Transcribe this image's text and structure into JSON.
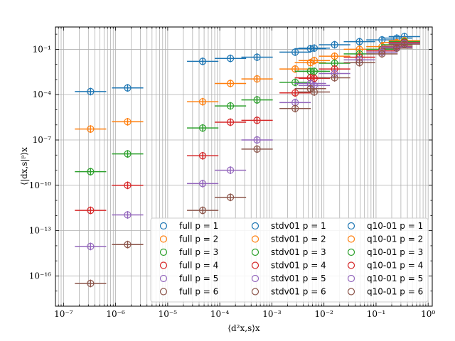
{
  "chart_data": {
    "type": "scatter",
    "title": "",
    "xlabel": "⟨d²x,s⟩x",
    "ylabel": "⟨|dx,s|ᵖ⟩x",
    "xscale": "log",
    "yscale": "log",
    "xlim": [
      7e-08,
      1.2
    ],
    "ylim": [
      1e-18,
      3
    ],
    "grid": true,
    "legend_position": "lower-right",
    "xtick_labels": [
      "10⁻⁷",
      "10⁻⁶",
      "10⁻⁵",
      "10⁻⁴",
      "10⁻³",
      "10⁻²",
      "10⁻¹",
      "10⁰"
    ],
    "ytick_labels": [
      "10⁻¹⁶",
      "10⁻¹³",
      "10⁻¹⁰",
      "10⁻⁷",
      "10⁻⁴",
      "10⁻¹"
    ],
    "colors": [
      "#1f77b4",
      "#ff7f0e",
      "#2ca02c",
      "#d62728",
      "#9467bd",
      "#8c564b"
    ],
    "groups": [
      "full",
      "stdv01",
      "q10-01"
    ],
    "p_values": [
      1,
      2,
      3,
      4,
      5,
      6
    ],
    "x_err_factor": 2.0,
    "y_err_factor": 1.8,
    "series": [
      {
        "name": "full p = 1",
        "group": "full",
        "p": 1,
        "x": [
          3.3e-07,
          1.7e-06,
          4.7e-05
        ],
        "y": [
          0.00016,
          0.00028,
          0.016
        ]
      },
      {
        "name": "full p = 2",
        "group": "full",
        "p": 2,
        "x": [
          3.3e-07,
          1.7e-06,
          4.7e-05
        ],
        "y": [
          5.3e-07,
          1.6e-06,
          3.4e-05
        ]
      },
      {
        "name": "full p = 3",
        "group": "full",
        "p": 3,
        "x": [
          3.3e-07,
          1.7e-06,
          4.7e-05
        ],
        "y": [
          8e-10,
          1.2e-08,
          6.2e-07
        ]
      },
      {
        "name": "full p = 4",
        "group": "full",
        "p": 4,
        "x": [
          3.3e-07,
          1.7e-06,
          4.7e-05
        ],
        "y": [
          2.2e-12,
          1e-10,
          9e-09
        ]
      },
      {
        "name": "full p = 5",
        "group": "full",
        "p": 5,
        "x": [
          3.3e-07,
          1.7e-06,
          4.7e-05
        ],
        "y": [
          9e-15,
          1.1e-12,
          1.3e-10
        ]
      },
      {
        "name": "full p = 6",
        "group": "full",
        "p": 6,
        "x": [
          3.3e-07,
          1.7e-06,
          4.7e-05
        ],
        "y": [
          3.2e-17,
          1.2e-14,
          2.2e-12
        ]
      },
      {
        "name": "stdv01 p = 1",
        "group": "stdv01",
        "p": 1,
        "x": [
          0.00016,
          0.00052,
          0.0028,
          0.0065
        ],
        "y": [
          0.025,
          0.03,
          0.065,
          0.12
        ]
      },
      {
        "name": "stdv01 p = 2",
        "group": "stdv01",
        "p": 2,
        "x": [
          0.00016,
          0.00052,
          0.0028,
          0.0065
        ],
        "y": [
          0.00055,
          0.0011,
          0.005,
          0.018
        ]
      },
      {
        "name": "stdv01 p = 3",
        "group": "stdv01",
        "p": 3,
        "x": [
          0.00016,
          0.00052,
          0.0028,
          0.0065
        ],
        "y": [
          1.8e-05,
          4.5e-05,
          0.00065,
          0.0035
        ]
      },
      {
        "name": "stdv01 p = 4",
        "group": "stdv01",
        "p": 4,
        "x": [
          0.00016,
          0.00052,
          0.0028,
          0.0065
        ],
        "y": [
          1.5e-06,
          2e-06,
          0.00013,
          0.0012
        ]
      },
      {
        "name": "stdv01 p = 5",
        "group": "stdv01",
        "p": 5,
        "x": [
          0.00016,
          0.00052,
          0.0028,
          0.0065
        ],
        "y": [
          1e-09,
          1e-07,
          3e-05,
          0.0004
        ]
      },
      {
        "name": "stdv01 p = 6",
        "group": "stdv01",
        "p": 6,
        "x": [
          0.00016,
          0.00052,
          0.0028,
          0.0065
        ],
        "y": [
          1.6e-11,
          2.5e-08,
          1.2e-05,
          0.00015
        ]
      },
      {
        "name": "q10-01 p = 1",
        "group": "q10-01",
        "p": 1,
        "x": [
          0.0055,
          0.016,
          0.048,
          0.13,
          0.25,
          0.35
        ],
        "y": [
          0.11,
          0.2,
          0.32,
          0.42,
          0.55,
          0.7
        ]
      },
      {
        "name": "q10-01 p = 2",
        "group": "q10-01",
        "p": 2,
        "x": [
          0.0055,
          0.016,
          0.048,
          0.13,
          0.25,
          0.35
        ],
        "y": [
          0.013,
          0.035,
          0.1,
          0.15,
          0.28,
          0.38
        ]
      },
      {
        "name": "q10-01 p = 3",
        "group": "q10-01",
        "p": 3,
        "x": [
          0.0055,
          0.016,
          0.048,
          0.13,
          0.25,
          0.35
        ],
        "y": [
          0.0035,
          0.012,
          0.05,
          0.1,
          0.2,
          0.32
        ]
      },
      {
        "name": "q10-01 p = 4",
        "group": "q10-01",
        "p": 4,
        "x": [
          0.0055,
          0.016,
          0.048,
          0.13,
          0.25,
          0.35
        ],
        "y": [
          0.0013,
          0.005,
          0.03,
          0.08,
          0.16,
          0.28
        ]
      },
      {
        "name": "q10-01 p = 5",
        "group": "q10-01",
        "p": 5,
        "x": [
          0.0055,
          0.016,
          0.048,
          0.13,
          0.25,
          0.35
        ],
        "y": [
          0.00055,
          0.0025,
          0.02,
          0.065,
          0.14,
          0.25
        ]
      },
      {
        "name": "q10-01 p = 6",
        "group": "q10-01",
        "p": 6,
        "x": [
          0.0055,
          0.016,
          0.048,
          0.13,
          0.25,
          0.35
        ],
        "y": [
          0.00025,
          0.0013,
          0.013,
          0.05,
          0.12,
          0.22
        ]
      }
    ]
  }
}
